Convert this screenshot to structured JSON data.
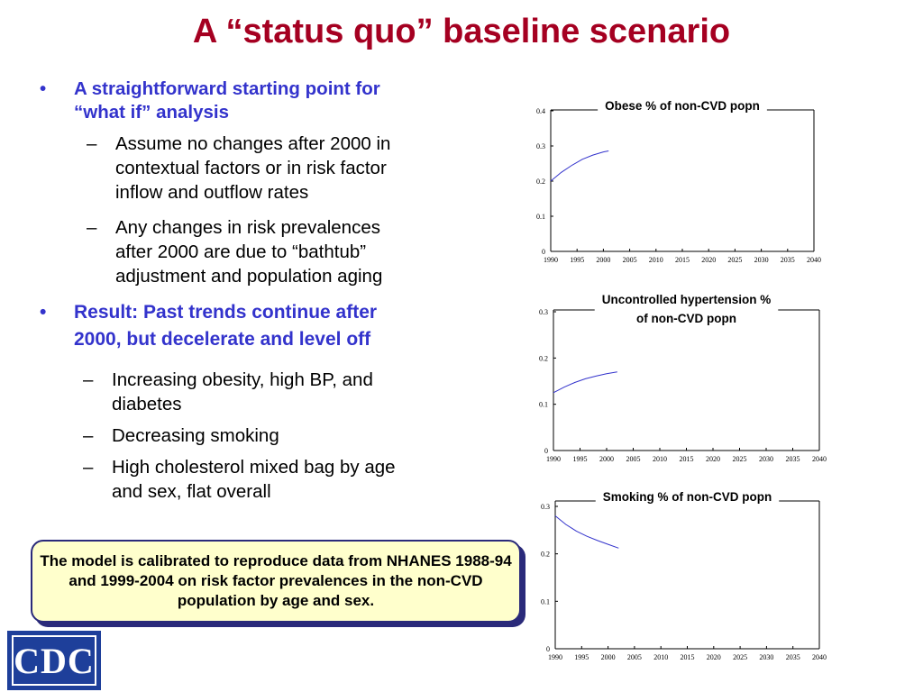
{
  "slide": {
    "title": "A “status quo” baseline scenario"
  },
  "bullets": {
    "b1": {
      "marker": "•",
      "line1": "A straightforward starting point for",
      "line2": "“what if” analysis"
    },
    "s1": {
      "marker": "–",
      "line1": "Assume no changes after 2000 in",
      "line2": "contextual factors or in risk factor",
      "line3": "inflow and outflow rates"
    },
    "s2": {
      "marker": "–",
      "line1": "Any changes in risk prevalences",
      "line2": "after 2000 are due to “bathtub”",
      "line3": "adjustment and population aging"
    },
    "b2": {
      "marker": "•",
      "line1": "Result: Past trends continue after",
      "line2": "2000, but decelerate and level off"
    },
    "s3": {
      "marker": "–",
      "line1": "Increasing obesity, high BP, and",
      "line2": "diabetes"
    },
    "s4": {
      "marker": "–",
      "line1": "Decreasing smoking"
    },
    "s5": {
      "marker": "–",
      "line1": "High cholesterol mixed bag by age",
      "line2": "and sex, flat overall"
    }
  },
  "callout": {
    "text": "The model is calibrated to reproduce data from NHANES 1988-94 and 1999-2004 on risk factor prevalences in the non-CVD population by age and sex."
  },
  "logo": {
    "text": "CDC"
  },
  "colors": {
    "title": "#a50021",
    "bullet_heading": "#3333cc",
    "series_line": "#3333cc",
    "callout_bg": "#ffffcc",
    "callout_border": "#2a2a7a",
    "logo_bg": "#1e3f9a"
  },
  "chart_data": [
    {
      "type": "line",
      "title_lines": [
        "Obese % of non-CVD popn"
      ],
      "x_ticks": [
        1990,
        1995,
        2000,
        2005,
        2010,
        2015,
        2020,
        2025,
        2030,
        2035,
        2040
      ],
      "y_ticks": [
        0,
        0.1,
        0.2,
        0.3,
        0.4
      ],
      "xlim": [
        1990,
        2040
      ],
      "ylim": [
        0,
        0.4
      ],
      "series": [
        {
          "x": [
            1990,
            1992,
            1994,
            1996,
            1998,
            2000,
            2001
          ],
          "y": [
            0.2,
            0.225,
            0.245,
            0.262,
            0.274,
            0.283,
            0.286
          ]
        }
      ]
    },
    {
      "type": "line",
      "title_lines": [
        "Uncontrolled hypertension %",
        "of non-CVD popn"
      ],
      "x_ticks": [
        1990,
        1995,
        2000,
        2005,
        2010,
        2015,
        2020,
        2025,
        2030,
        2035,
        2040
      ],
      "y_ticks": [
        0,
        0.1,
        0.2,
        0.3
      ],
      "xlim": [
        1990,
        2040
      ],
      "ylim": [
        0,
        0.3
      ],
      "series": [
        {
          "x": [
            1990,
            1992,
            1994,
            1996,
            1998,
            2000,
            2002
          ],
          "y": [
            0.125,
            0.137,
            0.147,
            0.155,
            0.161,
            0.166,
            0.17
          ]
        }
      ]
    },
    {
      "type": "line",
      "title_lines": [
        "Smoking % of non-CVD popn"
      ],
      "x_ticks": [
        1990,
        1995,
        2000,
        2005,
        2010,
        2015,
        2020,
        2025,
        2030,
        2035,
        2040
      ],
      "y_ticks": [
        0,
        0.1,
        0.2,
        0.3
      ],
      "xlim": [
        1990,
        2040
      ],
      "ylim": [
        0,
        0.3
      ],
      "series": [
        {
          "x": [
            1990,
            1992,
            1994,
            1996,
            1998,
            2000,
            2002
          ],
          "y": [
            0.28,
            0.262,
            0.248,
            0.237,
            0.228,
            0.22,
            0.212
          ]
        }
      ]
    }
  ]
}
